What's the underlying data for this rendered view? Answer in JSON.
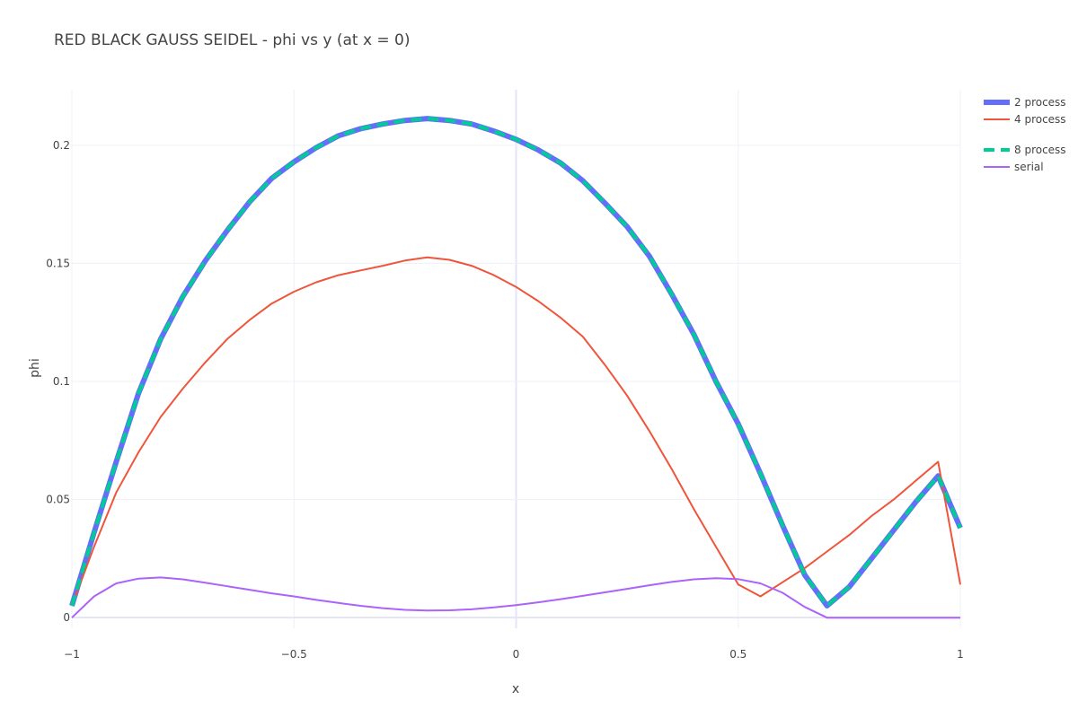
{
  "chart_data": {
    "type": "line",
    "title": "RED BLACK GAUSS SEIDEL - phi vs y (at x = 0)",
    "xlabel": "x",
    "ylabel": "phi",
    "xlim": [
      -1,
      1
    ],
    "ylim": [
      -0.0045,
      0.2235
    ],
    "x_ticks": [
      -1,
      -0.5,
      0,
      0.5,
      1
    ],
    "x_tick_labels": [
      "−1",
      "−0.5",
      "0",
      "0.5",
      "1"
    ],
    "y_ticks": [
      0,
      0.05,
      0.1,
      0.15,
      0.2
    ],
    "y_tick_labels": [
      "0",
      "0.05",
      "0.1",
      "0.15",
      "0.2"
    ],
    "grid": true,
    "legend_position": "top-right",
    "x": [
      -1,
      -0.95,
      -0.9,
      -0.85,
      -0.8,
      -0.75,
      -0.7,
      -0.65,
      -0.6,
      -0.55,
      -0.5,
      -0.45,
      -0.4,
      -0.35,
      -0.3,
      -0.25,
      -0.2,
      -0.15,
      -0.1,
      -0.05,
      0,
      0.05,
      0.1,
      0.15,
      0.2,
      0.25,
      0.3,
      0.35,
      0.4,
      0.45,
      0.5,
      0.55,
      0.6,
      0.65,
      0.7,
      0.75,
      0.8,
      0.85,
      0.9,
      0.95,
      1
    ],
    "series": [
      {
        "name": "2 process",
        "color": "#636efa",
        "dash": "solid",
        "width": 6,
        "values": [
          0.005,
          0.036,
          0.066,
          0.095,
          0.118,
          0.136,
          0.151,
          0.164,
          0.176,
          0.186,
          0.193,
          0.199,
          0.204,
          0.207,
          0.209,
          0.2105,
          0.2113,
          0.2105,
          0.209,
          0.206,
          0.2025,
          0.198,
          0.1925,
          0.185,
          0.1755,
          0.1655,
          0.153,
          0.137,
          0.12,
          0.1,
          0.082,
          0.061,
          0.039,
          0.018,
          0.005,
          0.013,
          0.025,
          0.037,
          0.049,
          0.06,
          0.038
        ]
      },
      {
        "name": "4 process",
        "color": "#ef553b",
        "dash": "solid",
        "width": 2,
        "values": [
          0.005,
          0.03,
          0.053,
          0.07,
          0.085,
          0.097,
          0.108,
          0.118,
          0.126,
          0.133,
          0.138,
          0.142,
          0.145,
          0.147,
          0.149,
          0.1512,
          0.1525,
          0.1515,
          0.149,
          0.145,
          0.14,
          0.134,
          0.127,
          0.119,
          0.107,
          0.094,
          0.079,
          0.063,
          0.046,
          0.03,
          0.014,
          0.009,
          0.015,
          0.021,
          0.028,
          0.035,
          0.043,
          0.05,
          0.058,
          0.066,
          0.014
        ]
      },
      {
        "name": "8 process",
        "color": "#00cc96",
        "dash": "dash",
        "width": 4,
        "values": [
          0.005,
          0.036,
          0.066,
          0.095,
          0.118,
          0.136,
          0.151,
          0.164,
          0.176,
          0.186,
          0.193,
          0.199,
          0.204,
          0.207,
          0.209,
          0.2105,
          0.2113,
          0.2105,
          0.209,
          0.206,
          0.2025,
          0.198,
          0.1925,
          0.185,
          0.1755,
          0.1655,
          0.153,
          0.137,
          0.12,
          0.1,
          0.082,
          0.061,
          0.039,
          0.018,
          0.005,
          0.013,
          0.025,
          0.037,
          0.049,
          0.06,
          0.038
        ]
      },
      {
        "name": "serial",
        "color": "#ab63fa",
        "dash": "solid",
        "width": 2,
        "values": [
          0,
          0.009,
          0.0145,
          0.0165,
          0.017,
          0.0162,
          0.0148,
          0.0133,
          0.0118,
          0.0103,
          0.009,
          0.0075,
          0.0062,
          0.005,
          0.004,
          0.0033,
          0.003,
          0.0031,
          0.0035,
          0.0043,
          0.0053,
          0.0065,
          0.0078,
          0.0092,
          0.0107,
          0.0122,
          0.0137,
          0.0151,
          0.0162,
          0.0167,
          0.0163,
          0.0145,
          0.0105,
          0.0045,
          0,
          0,
          0,
          0,
          0,
          0,
          0
        ]
      }
    ]
  }
}
